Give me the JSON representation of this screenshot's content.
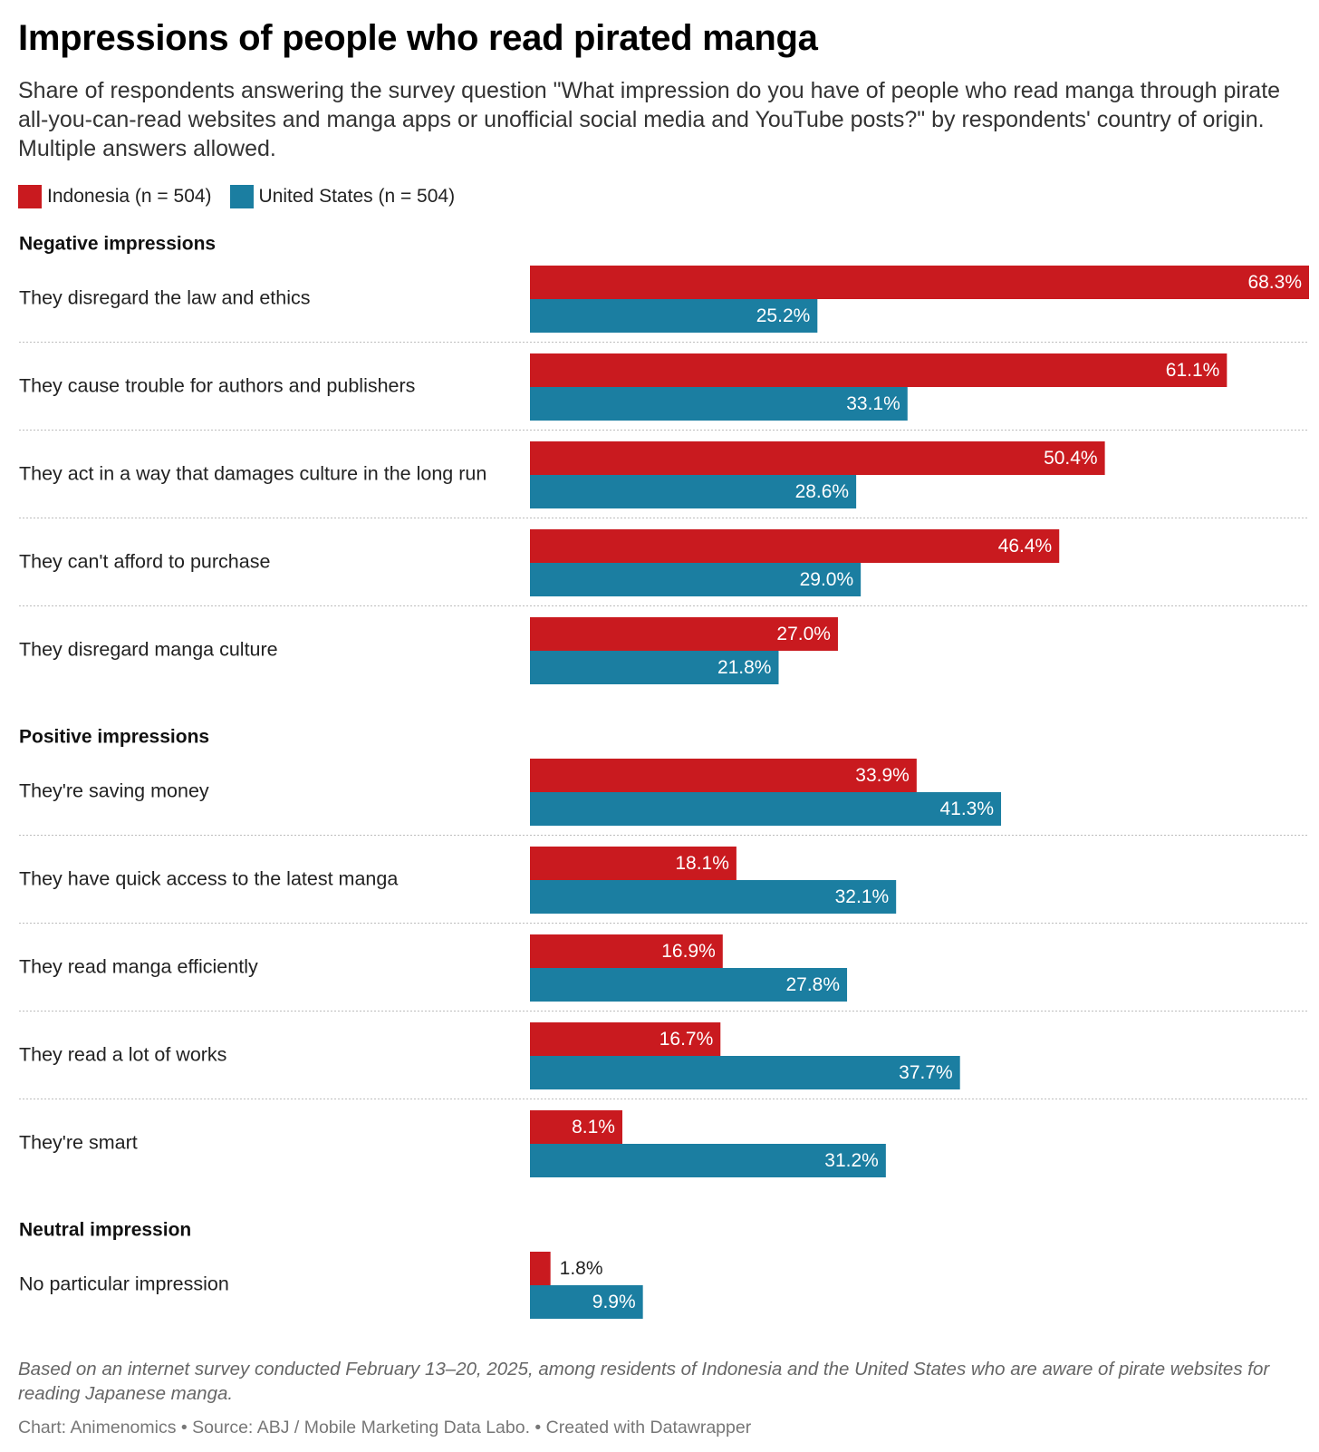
{
  "title": "Impressions of people who read pirated manga",
  "subtitle": "Share of respondents answering the survey question \"What impression do you have of people who read manga through pirate all-you-can-read websites and manga apps or unofficial social media and YouTube posts?\" by respondents' country of origin. Multiple answers allowed.",
  "notes": "Based on an internet survey conducted February 13–20, 2025, among residents of Indonesia and the United States who are aware of pirate websites for reading Japanese manga.",
  "credits": "Chart: Animenomics • Source: ABJ / Mobile Marketing Data Labo. • Created with Datawrapper",
  "colors": {
    "indonesia": "#c91a1f",
    "united_states": "#1b7ea1"
  },
  "legend": [
    {
      "label": "Indonesia (n = 504)",
      "color": "#c91a1f"
    },
    {
      "label": "United States (n = 504)",
      "color": "#1b7ea1"
    }
  ],
  "chart_data": {
    "type": "bar",
    "orientation": "horizontal",
    "unit": "%",
    "xlim": [
      0,
      68.3
    ],
    "grid": false,
    "legend_position": "top-left",
    "groups": [
      {
        "label": "Negative impressions",
        "categories": [
          "They disregard the law and ethics",
          "They cause trouble for authors and publishers",
          "They act in a way that damages culture in the long run",
          "They can't afford to purchase",
          "They disregard manga culture"
        ],
        "series": [
          {
            "name": "Indonesia (n = 504)",
            "values": [
              68.3,
              61.1,
              50.4,
              46.4,
              27.0
            ],
            "labels": [
              "68.3%",
              "61.1%",
              "50.4%",
              "46.4%",
              "27.0%"
            ]
          },
          {
            "name": "United States (n = 504)",
            "values": [
              25.2,
              33.1,
              28.6,
              29.0,
              21.8
            ],
            "labels": [
              "25.2%",
              "33.1%",
              "28.6%",
              "29.0%",
              "21.8%"
            ]
          }
        ]
      },
      {
        "label": "Positive impressions",
        "categories": [
          "They're saving money",
          "They have quick access to the latest manga",
          "They read manga efficiently",
          "They read a lot of works",
          "They're smart"
        ],
        "series": [
          {
            "name": "Indonesia (n = 504)",
            "values": [
              33.9,
              18.1,
              16.9,
              16.7,
              8.1
            ],
            "labels": [
              "33.9%",
              "18.1%",
              "16.9%",
              "16.7%",
              "8.1%"
            ]
          },
          {
            "name": "United States (n = 504)",
            "values": [
              41.3,
              32.1,
              27.8,
              37.7,
              31.2
            ],
            "labels": [
              "41.3%",
              "32.1%",
              "27.8%",
              "37.7%",
              "31.2%"
            ]
          }
        ]
      },
      {
        "label": "Neutral impression",
        "categories": [
          "No particular impression"
        ],
        "series": [
          {
            "name": "Indonesia (n = 504)",
            "values": [
              1.8
            ],
            "labels": [
              "1.8%"
            ]
          },
          {
            "name": "United States (n = 504)",
            "values": [
              9.9
            ],
            "labels": [
              "9.9%"
            ]
          }
        ]
      }
    ]
  }
}
